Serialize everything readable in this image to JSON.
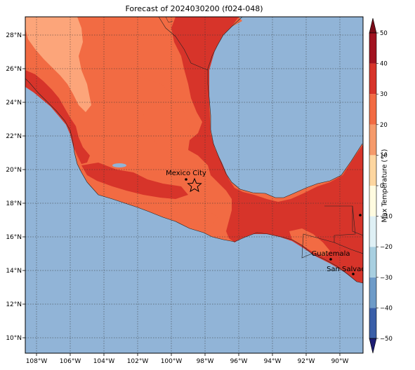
{
  "title": "Forecast of 2024030200 (f024-048)",
  "colorbar": {
    "label": "Max Temperature (°C)",
    "ticks": [
      "50",
      "40",
      "30",
      "20",
      "10",
      "0",
      "−10",
      "−20",
      "−30",
      "−40",
      "−50"
    ],
    "levels": [
      -50,
      -40,
      -30,
      -20,
      -10,
      0,
      10,
      20,
      30,
      40,
      50
    ],
    "colors": [
      "#2c2c8c",
      "#3a5fa8",
      "#6e9bc8",
      "#a8cfe0",
      "#dff0f5",
      "#fffbe0",
      "#fdd6a0",
      "#f59a6b",
      "#f26b43",
      "#d7342a",
      "#a11220"
    ]
  },
  "map": {
    "lon_labels": [
      "108°W",
      "106°W",
      "104°W",
      "102°W",
      "100°W",
      "98°W",
      "96°W",
      "94°W",
      "92°W",
      "90°W"
    ],
    "lat_labels": [
      "28°N",
      "26°N",
      "24°N",
      "22°N",
      "20°N",
      "18°N",
      "16°N",
      "14°N",
      "12°N",
      "10°N"
    ],
    "ocean_color": "#91b4d7",
    "cities": [
      {
        "name": "Mexico City"
      },
      {
        "name": "Guatemala"
      },
      {
        "name": "San Salvador"
      }
    ],
    "marker": "star-marker"
  }
}
